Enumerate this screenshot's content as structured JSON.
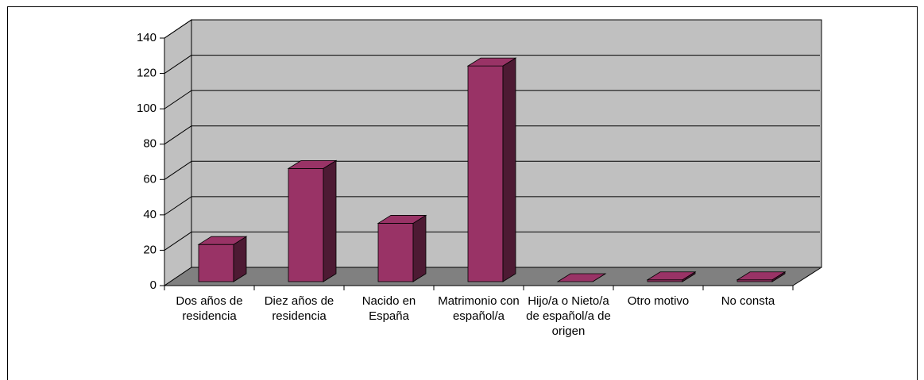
{
  "chart_data": {
    "type": "bar",
    "categories": [
      "Dos años de residencia",
      "Diez años de residencia",
      "Nacido en España",
      "Matrimonio con español/a",
      "Hijo/a o Nieto/a de español/a de origen",
      "Otro motivo",
      "No consta"
    ],
    "values": [
      21,
      64,
      33,
      122,
      0,
      1,
      1
    ],
    "color": "#993366",
    "ylim": [
      0,
      140
    ],
    "yticks": [
      0,
      20,
      40,
      60,
      80,
      100,
      120,
      140
    ],
    "grid": true
  }
}
